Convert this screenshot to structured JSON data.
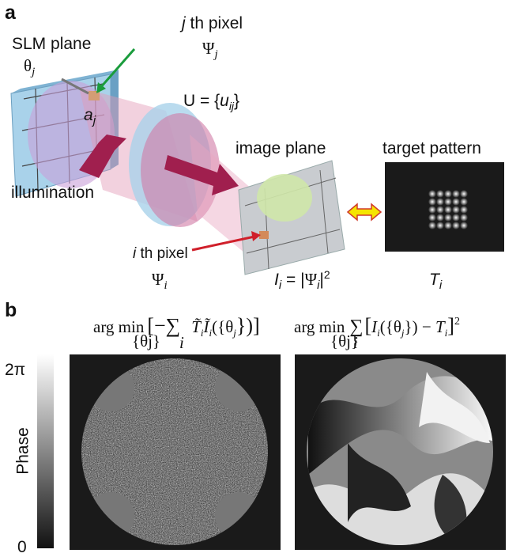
{
  "panel_a": {
    "label": "a",
    "slm_plane": "SLM plane",
    "theta_j": {
      "base": "θ",
      "sub": "j"
    },
    "j_pixel": {
      "var": "j",
      "text": " th pixel"
    },
    "psi_j": {
      "base": "Ψ",
      "sub": "j"
    },
    "a_j": {
      "base": "a",
      "sub": "j"
    },
    "transmission": {
      "prefix": "U = {",
      "base": "u",
      "sub": "ij",
      "suffix": "}"
    },
    "illumination": "illumination",
    "image_plane": "image plane",
    "target_pattern": "target pattern",
    "i_pixel": {
      "var": "i",
      "text": " th pixel"
    },
    "psi_i": {
      "base": "Ψ",
      "sub": "i"
    },
    "intensity": {
      "base": "I",
      "sub": "i",
      "mid": " = |",
      "psi": "Ψ",
      "psi_sub": "i",
      "close": "|",
      "power": "2"
    },
    "target": {
      "base": "T",
      "sub": "i"
    }
  },
  "panel_b": {
    "label": "b",
    "formula_left": {
      "op": "arg min",
      "under": "{θj}",
      "open": "[−∑",
      "sum_under": "i",
      "t": "T̃",
      "t_sub": "i",
      "i": "Ĩ",
      "i_sub": "i",
      "arg": "({θ",
      "arg_sub": "j",
      "close": "})]"
    },
    "formula_right": {
      "op": "arg min",
      "under": "{θj}",
      "sum": "∑",
      "sum_under": "i",
      "open": "[",
      "i": "I",
      "i_sub": "i",
      "arg": "({θ",
      "arg_sub": "j",
      "mid": "}) − ",
      "t": "T",
      "t_sub": "i",
      "close": "]",
      "power": "2"
    },
    "colorbar": {
      "top": "2π",
      "label": "Phase",
      "bottom": "0"
    }
  }
}
